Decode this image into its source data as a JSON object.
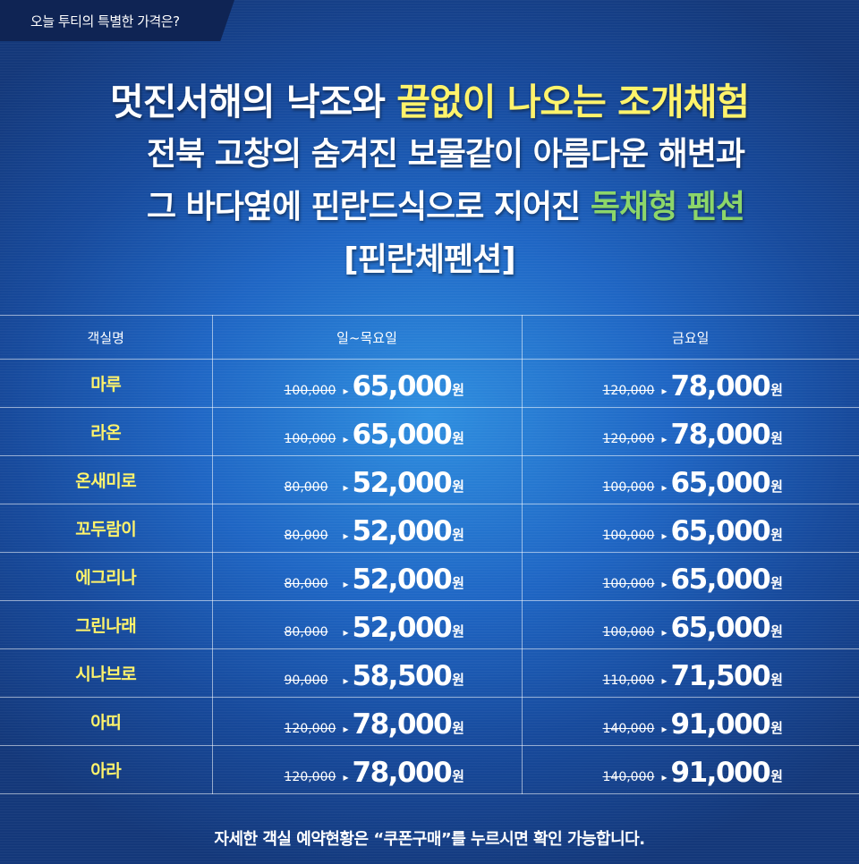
{
  "top_tab": {
    "label": "오늘 투티의 특별한 가격은?"
  },
  "hero": {
    "line1_white": "멋진서해의 낙조와 ",
    "line1_yellow": "끝없이 나오는 조개채험",
    "line2": "전북 고창의 숨겨진 보물같이 아름다운 해변과",
    "line3_white": "그 바다옆에 핀란드식으로 지어진 ",
    "line3_green": "독채형 펜션",
    "line4": "[핀란체펜션]"
  },
  "table": {
    "headers": [
      "객실명",
      "일~목요일",
      "금요일"
    ],
    "currency": "원",
    "arrow": "▸",
    "rows": [
      {
        "room": "마루",
        "weekday_old": "100,000",
        "weekday_new": "65,000",
        "friday_old": "120,000",
        "friday_new": "78,000"
      },
      {
        "room": "라온",
        "weekday_old": "100,000",
        "weekday_new": "65,000",
        "friday_old": "120,000",
        "friday_new": "78,000"
      },
      {
        "room": "온새미로",
        "weekday_old": "80,000",
        "weekday_new": "52,000",
        "friday_old": "100,000",
        "friday_new": "65,000"
      },
      {
        "room": "꼬두람이",
        "weekday_old": "80,000",
        "weekday_new": "52,000",
        "friday_old": "100,000",
        "friday_new": "65,000"
      },
      {
        "room": "에그리나",
        "weekday_old": "80,000",
        "weekday_new": "52,000",
        "friday_old": "100,000",
        "friday_new": "65,000"
      },
      {
        "room": "그린나래",
        "weekday_old": "80,000",
        "weekday_new": "52,000",
        "friday_old": "100,000",
        "friday_new": "65,000"
      },
      {
        "room": "시나브로",
        "weekday_old": "90,000",
        "weekday_new": "58,500",
        "friday_old": "110,000",
        "friday_new": "71,500"
      },
      {
        "room": "아띠",
        "weekday_old": "120,000",
        "weekday_new": "78,000",
        "friday_old": "140,000",
        "friday_new": "91,000"
      },
      {
        "room": "아라",
        "weekday_old": "120,000",
        "weekday_new": "78,000",
        "friday_old": "140,000",
        "friday_new": "91,000"
      }
    ]
  },
  "footer": {
    "note": "자세한 객실 예약현황은 “쿠폰구매”를 누르시면 확인 가능합니다."
  },
  "colors": {
    "accent_yellow": "#fff36b",
    "accent_green": "#8cd66a",
    "tab_navy": "#0f2454",
    "background_blue": "#1f66c4"
  }
}
